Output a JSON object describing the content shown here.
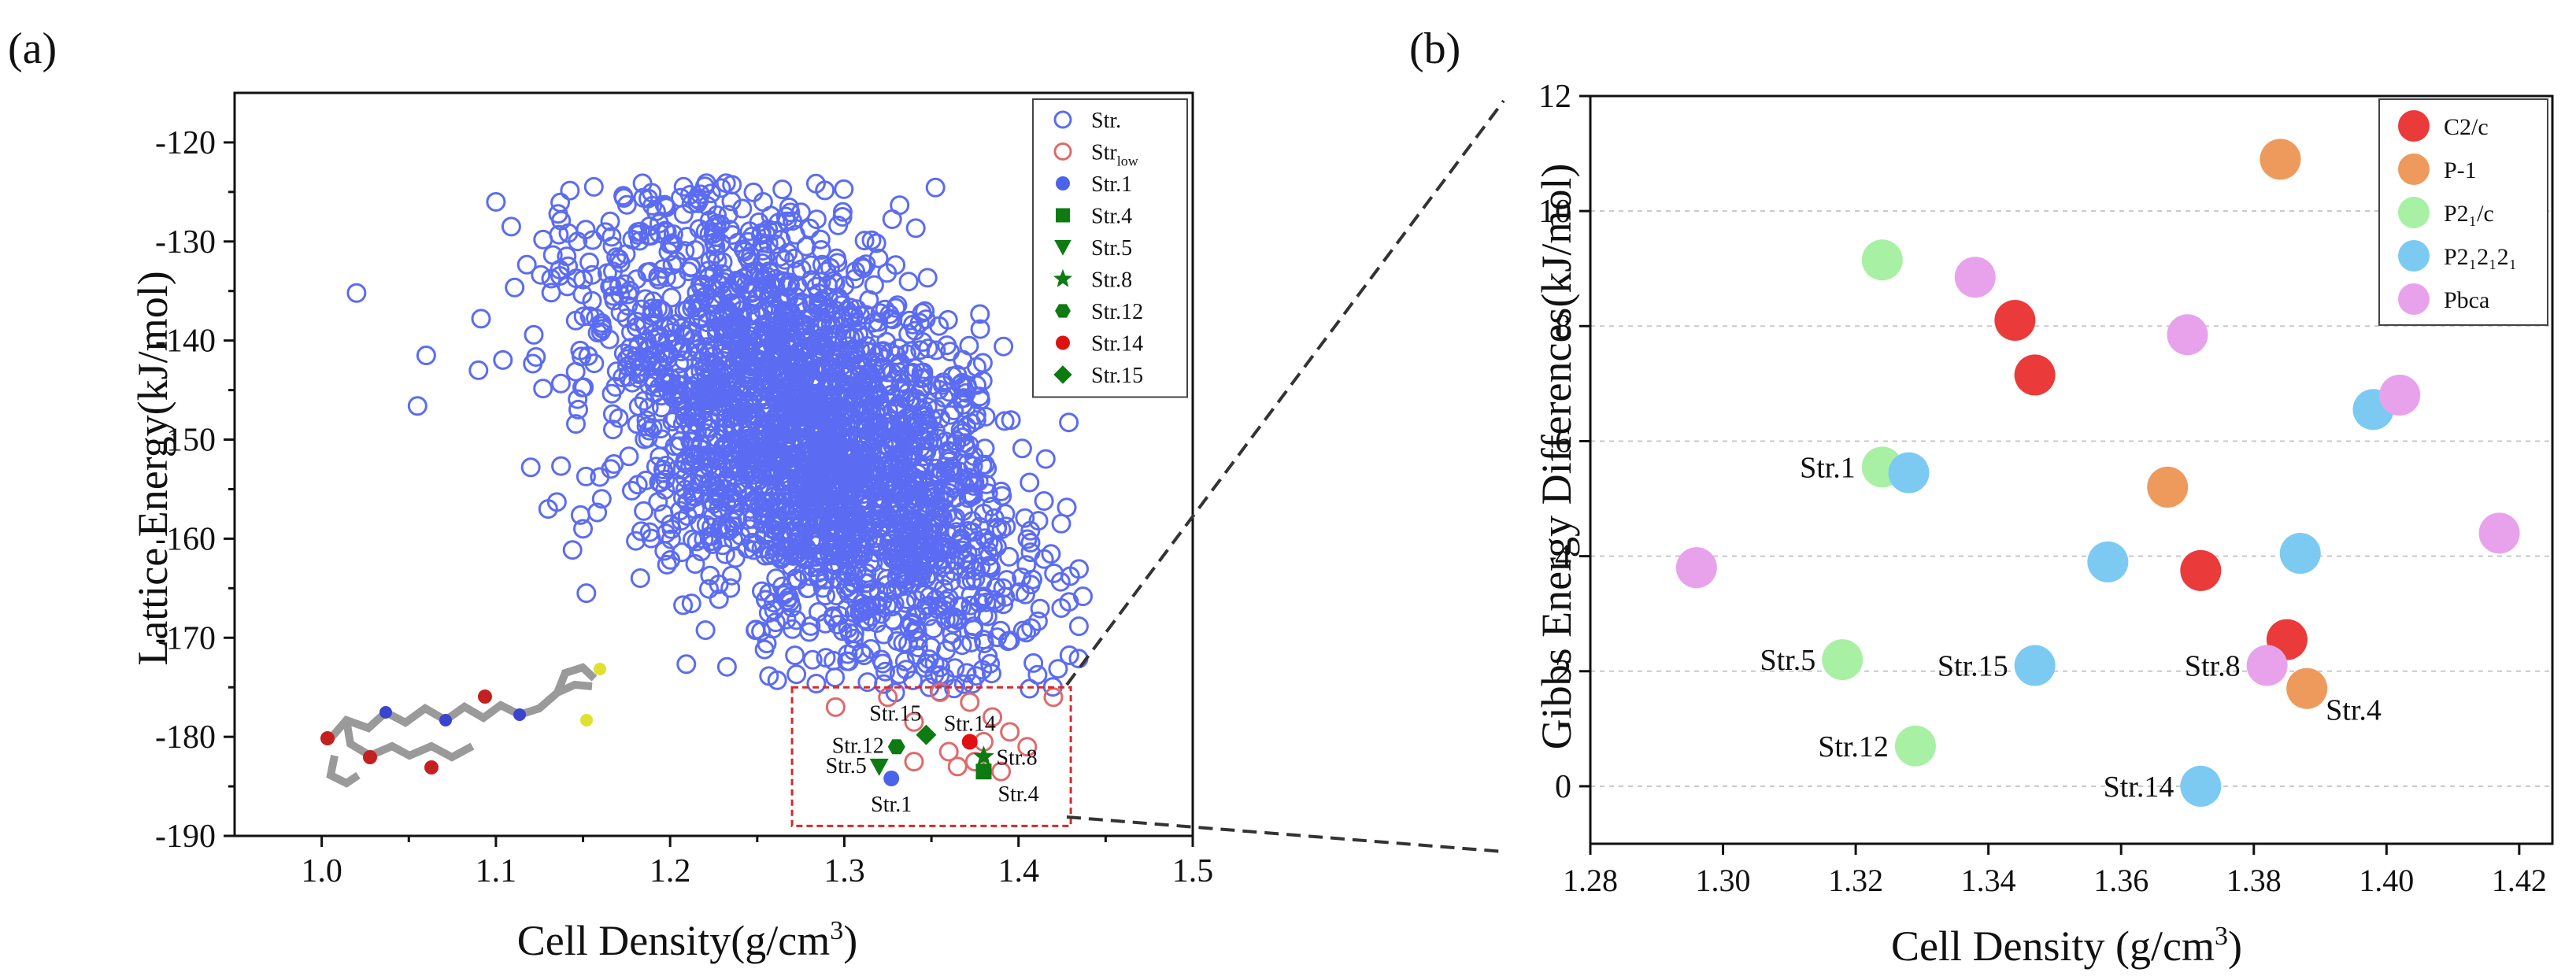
{
  "colors": {
    "str_blue": "#5b6cf2",
    "str_low_red": "#e06a6a",
    "marker_blue": "#4b63e8",
    "marker_green": "#0d7a12",
    "marker_red": "#e01010",
    "zoom_box": "#d62a2a",
    "c2c": "#ea3a3a",
    "p1": "#ee9a5c",
    "p21c": "#a8f0a4",
    "p212121": "#7ccaf2",
    "pbca": "#e8a2ec",
    "gridline": "#c8c8c8"
  },
  "chart_data": [
    {
      "panel_label": "(a)",
      "type": "scatter",
      "xlabel": "Cell Density(g/cm",
      "xlabel_sup": "3",
      "xlabel_close": ")",
      "ylabel": "Lattice Energy(kJ/mol)",
      "xlim": [
        0.95,
        1.5
      ],
      "ylim": [
        -190,
        -115
      ],
      "xticks": [
        1.0,
        1.1,
        1.2,
        1.3,
        1.4,
        1.5
      ],
      "xtick_labels": [
        "1.0",
        "1.1",
        "1.2",
        "1.3",
        "1.4",
        "1.5"
      ],
      "yticks": [
        -190,
        -180,
        -170,
        -160,
        -150,
        -140,
        -130,
        -120
      ],
      "ytick_labels": [
        "-190",
        "-180",
        "-170",
        "-160",
        "-150",
        "-140",
        "-130",
        "-120"
      ],
      "legend_position": "top-right",
      "legend": [
        {
          "label": "Str.",
          "sub": "",
          "marker": "open-circle",
          "color_key": "str_blue"
        },
        {
          "label": "Str",
          "sub": "low",
          "marker": "open-circle",
          "color_key": "str_low_red"
        },
        {
          "label": "Str.1",
          "sub": "",
          "marker": "circle",
          "color_key": "marker_blue"
        },
        {
          "label": "Str.4",
          "sub": "",
          "marker": "square",
          "color_key": "marker_green"
        },
        {
          "label": "Str.5",
          "sub": "",
          "marker": "triangle-down",
          "color_key": "marker_green"
        },
        {
          "label": "Str.8",
          "sub": "",
          "marker": "star",
          "color_key": "marker_green"
        },
        {
          "label": "Str.12",
          "sub": "",
          "marker": "hexagon",
          "color_key": "marker_green"
        },
        {
          "label": "Str.14",
          "sub": "",
          "marker": "circle",
          "color_key": "marker_red"
        },
        {
          "label": "Str.15",
          "sub": "",
          "marker": "diamond",
          "color_key": "marker_green"
        }
      ],
      "series_str_cloud": {
        "name": "Str.",
        "count": 2600,
        "density_range": [
          1.02,
          1.44
        ],
        "energy_range": [
          -176,
          -124
        ],
        "trend": "energy decreases as density increases",
        "outliers": [
          {
            "x": 1.02,
            "y": -135.2
          },
          {
            "x": 1.06,
            "y": -141.5
          },
          {
            "x": 1.055,
            "y": -146.6
          },
          {
            "x": 1.09,
            "y": -143
          },
          {
            "x": 1.12,
            "y": -152.8
          },
          {
            "x": 1.13,
            "y": -157
          },
          {
            "x": 1.135,
            "y": -156.3
          },
          {
            "x": 1.15,
            "y": -159
          },
          {
            "x": 1.1,
            "y": -126
          }
        ]
      },
      "series_str_low": {
        "name": "Str_low",
        "points": [
          {
            "x": 1.295,
            "y": -177
          },
          {
            "x": 1.325,
            "y": -176
          },
          {
            "x": 1.34,
            "y": -178.5
          },
          {
            "x": 1.355,
            "y": -175.5
          },
          {
            "x": 1.372,
            "y": -176.5
          },
          {
            "x": 1.385,
            "y": -178
          },
          {
            "x": 1.395,
            "y": -179.5
          },
          {
            "x": 1.42,
            "y": -176
          },
          {
            "x": 1.34,
            "y": -182.5
          },
          {
            "x": 1.36,
            "y": -181.5
          },
          {
            "x": 1.365,
            "y": -183
          },
          {
            "x": 1.375,
            "y": -182.5
          },
          {
            "x": 1.39,
            "y": -183.5
          },
          {
            "x": 1.405,
            "y": -181
          },
          {
            "x": 1.38,
            "y": -180.5
          }
        ]
      },
      "highlighted": [
        {
          "name": "Str.1",
          "x": 1.327,
          "y": -184.2,
          "marker": "circle",
          "color_key": "marker_blue",
          "label": "Str.1",
          "label_pos": "below"
        },
        {
          "name": "Str.4",
          "x": 1.38,
          "y": -183.5,
          "marker": "square",
          "color_key": "marker_green",
          "label": "Str.4",
          "label_pos": "below-right"
        },
        {
          "name": "Str.5",
          "x": 1.32,
          "y": -183,
          "marker": "triangle-down",
          "color_key": "marker_green",
          "label": "Str.5",
          "label_pos": "left"
        },
        {
          "name": "Str.8",
          "x": 1.38,
          "y": -182,
          "marker": "star",
          "color_key": "marker_green",
          "label": "Str.8",
          "label_pos": "right"
        },
        {
          "name": "Str.12",
          "x": 1.33,
          "y": -181,
          "marker": "hexagon",
          "color_key": "marker_green",
          "label": "Str.12",
          "label_pos": "left"
        },
        {
          "name": "Str.14",
          "x": 1.372,
          "y": -180.5,
          "marker": "circle",
          "color_key": "marker_red",
          "label": "Str.14",
          "label_pos": "above"
        },
        {
          "name": "Str.15",
          "x": 1.347,
          "y": -179.8,
          "marker": "diamond",
          "color_key": "marker_green",
          "label": "Str.15",
          "label_pos": "above-left"
        }
      ],
      "zoom_box_range": {
        "x": [
          1.27,
          1.43
        ],
        "y": [
          -189,
          -175
        ]
      },
      "inset": "molecular structure (ball-and-stick)"
    },
    {
      "panel_label": "(b)",
      "type": "scatter",
      "xlabel": "Cell Density (g/cm",
      "xlabel_sup": "3",
      "xlabel_close": ")",
      "ylabel": "Gibbs Energy Differences(kJ/mol)",
      "xlim": [
        1.28,
        1.425
      ],
      "ylim": [
        -1,
        12
      ],
      "xticks": [
        1.28,
        1.3,
        1.32,
        1.34,
        1.36,
        1.38,
        1.4,
        1.42
      ],
      "xtick_labels": [
        "1.28",
        "1.30",
        "1.32",
        "1.34",
        "1.36",
        "1.38",
        "1.40",
        "1.42"
      ],
      "yticks": [
        0,
        2,
        4,
        6,
        8,
        10,
        12
      ],
      "ytick_labels": [
        "0",
        "2",
        "4",
        "6",
        "8",
        "10",
        "12"
      ],
      "grid": true,
      "legend_position": "top-right",
      "legend": [
        {
          "label": "C2/c",
          "color_key": "c2c"
        },
        {
          "label": "P-1",
          "color_key": "p1"
        },
        {
          "label": "P2₁/c",
          "color_key": "p21c"
        },
        {
          "label": "P2₁2₁2₁",
          "color_key": "p212121"
        },
        {
          "label": "Pbca",
          "color_key": "pbca"
        }
      ],
      "series": [
        {
          "name": "C2/c",
          "color_key": "c2c",
          "points": [
            {
              "x": 1.344,
              "y": 8.1
            },
            {
              "x": 1.347,
              "y": 7.15
            },
            {
              "x": 1.372,
              "y": 3.75
            },
            {
              "x": 1.385,
              "y": 2.55
            }
          ]
        },
        {
          "name": "P-1",
          "color_key": "p1",
          "points": [
            {
              "x": 1.384,
              "y": 10.9
            },
            {
              "x": 1.367,
              "y": 5.2
            },
            {
              "x": 1.388,
              "y": 1.7
            }
          ]
        },
        {
          "name": "P21/c",
          "color_key": "p21c",
          "points": [
            {
              "x": 1.324,
              "y": 9.15
            },
            {
              "x": 1.324,
              "y": 5.55
            },
            {
              "x": 1.318,
              "y": 2.2
            },
            {
              "x": 1.329,
              "y": 0.7
            }
          ]
        },
        {
          "name": "P212121",
          "color_key": "p212121",
          "points": [
            {
              "x": 1.328,
              "y": 5.45
            },
            {
              "x": 1.398,
              "y": 6.55
            },
            {
              "x": 1.358,
              "y": 3.9
            },
            {
              "x": 1.387,
              "y": 4.05
            },
            {
              "x": 1.347,
              "y": 2.1
            },
            {
              "x": 1.372,
              "y": 0.0
            }
          ]
        },
        {
          "name": "Pbca",
          "color_key": "pbca",
          "points": [
            {
              "x": 1.338,
              "y": 8.85
            },
            {
              "x": 1.37,
              "y": 7.85
            },
            {
              "x": 1.402,
              "y": 6.8
            },
            {
              "x": 1.296,
              "y": 3.8
            },
            {
              "x": 1.417,
              "y": 4.4
            },
            {
              "x": 1.382,
              "y": 2.1
            }
          ]
        }
      ],
      "annotations": [
        {
          "label": "Str.1",
          "x": 1.324,
          "y": 5.55,
          "side": "left"
        },
        {
          "label": "Str.5",
          "x": 1.318,
          "y": 2.2,
          "side": "left"
        },
        {
          "label": "Str.15",
          "x": 1.347,
          "y": 2.1,
          "side": "left"
        },
        {
          "label": "Str.8",
          "x": 1.382,
          "y": 2.1,
          "side": "left"
        },
        {
          "label": "Str.4",
          "x": 1.388,
          "y": 1.7,
          "side": "right"
        },
        {
          "label": "Str.12",
          "x": 1.329,
          "y": 0.7,
          "side": "left"
        },
        {
          "label": "Str.14",
          "x": 1.372,
          "y": 0.0,
          "side": "left"
        }
      ]
    }
  ]
}
